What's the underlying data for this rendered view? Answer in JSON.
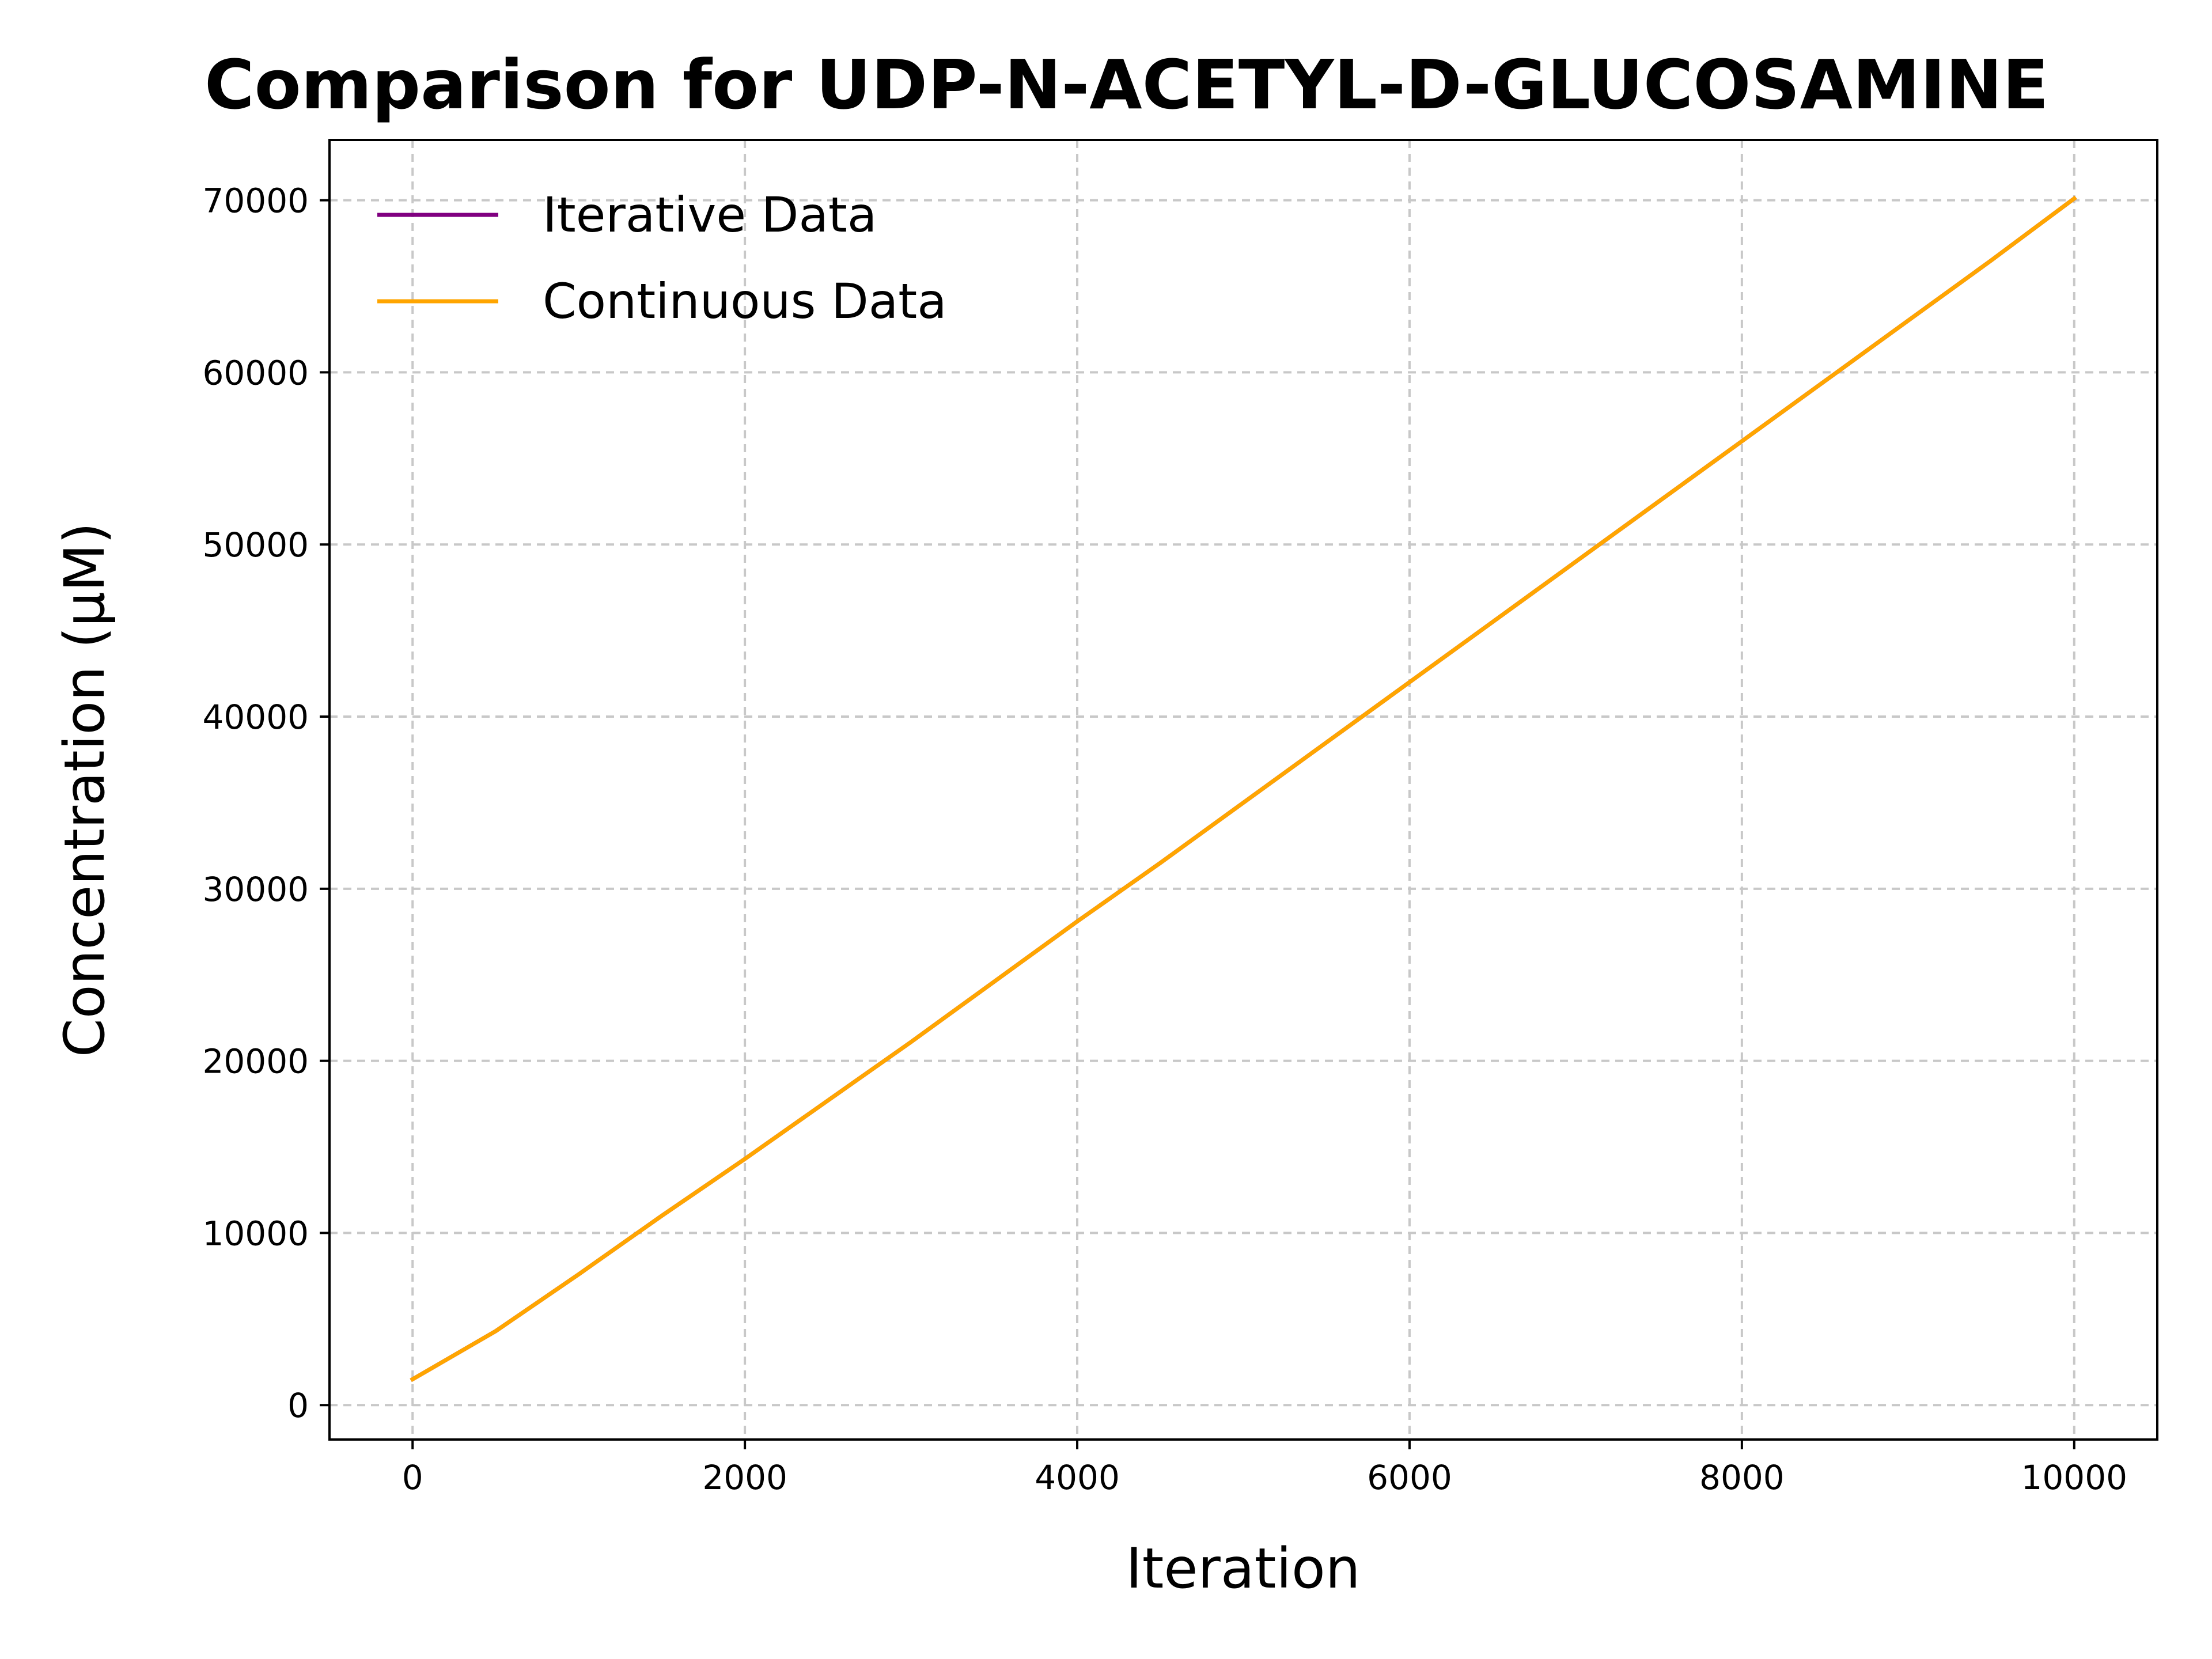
{
  "chart_data": {
    "type": "line",
    "title": "Comparison for UDP-N-ACETYL-D-GLUCOSAMINE",
    "xlabel": "Iteration",
    "ylabel": "Concentration (μM)",
    "xlim": [
      -500,
      10500
    ],
    "ylim": [
      -2000,
      73500
    ],
    "xticks": [
      0,
      2000,
      4000,
      6000,
      8000,
      10000
    ],
    "yticks": [
      0,
      10000,
      20000,
      30000,
      40000,
      50000,
      60000,
      70000
    ],
    "grid": true,
    "legend_position": "top-left",
    "x": [
      0,
      500,
      1000,
      1500,
      2000,
      2500,
      3000,
      3500,
      4000,
      4500,
      5000,
      5500,
      6000,
      6500,
      7000,
      7500,
      8000,
      8500,
      9000,
      9500,
      10000
    ],
    "series": [
      {
        "name": "Iterative Data",
        "color": "#800080",
        "values": [
          1500,
          4300,
          7600,
          11000,
          14300,
          17700,
          21100,
          24600,
          28100,
          31500,
          35000,
          38500,
          42000,
          45500,
          49000,
          52500,
          56000,
          59500,
          63000,
          66500,
          70100
        ]
      },
      {
        "name": "Continuous Data",
        "color": "#FFA500",
        "values": [
          1500,
          4300,
          7600,
          11000,
          14300,
          17700,
          21100,
          24600,
          28100,
          31500,
          35000,
          38500,
          42000,
          45500,
          49000,
          52500,
          56000,
          59500,
          63000,
          66500,
          70100
        ]
      }
    ]
  }
}
